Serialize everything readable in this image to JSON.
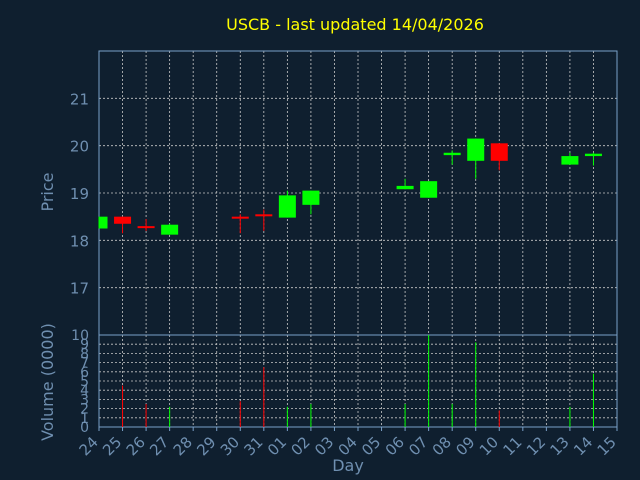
{
  "colors": {
    "background": "#0f1f2f",
    "grid": "#c8c8c8",
    "axis": "#7aa0c8",
    "text": "#6f8fb0",
    "title": "#ffff00",
    "up": "#00ff00",
    "down": "#ff0000"
  },
  "chart_data": {
    "type": "candlestick",
    "title": "USCB - last updated 14/04/2026",
    "xlabel": "Day",
    "ylabel": "Price",
    "volume_label": "Volume (0000)",
    "grid": true,
    "price_ylim": [
      16,
      22
    ],
    "price_ticks": [
      "17",
      "18",
      "19",
      "20",
      "21"
    ],
    "volume_ylim": [
      0,
      10
    ],
    "volume_ticks": [
      "0",
      "1",
      "2",
      "3",
      "4",
      "5",
      "6",
      "7",
      "8",
      "9",
      "10"
    ],
    "days": [
      "24",
      "25",
      "26",
      "27",
      "28",
      "29",
      "30",
      "31",
      "01",
      "02",
      "03",
      "04",
      "05",
      "06",
      "07",
      "08",
      "09",
      "10",
      "11",
      "12",
      "13",
      "14",
      "15"
    ],
    "candles": [
      {
        "day": "24",
        "open": 18.25,
        "close": 18.5,
        "high": 18.5,
        "low": 18.25
      },
      {
        "day": "25",
        "open": 18.5,
        "close": 18.35,
        "high": 18.5,
        "low": 18.15
      },
      {
        "day": "26",
        "open": 18.3,
        "close": 18.28,
        "high": 18.45,
        "low": 18.2
      },
      {
        "day": "27",
        "open": 18.12,
        "close": 18.33,
        "high": 18.35,
        "low": 18.12
      },
      {
        "day": "30",
        "open": 18.5,
        "close": 18.48,
        "high": 18.55,
        "low": 18.15
      },
      {
        "day": "31",
        "open": 18.55,
        "close": 18.52,
        "high": 18.65,
        "low": 18.2
      },
      {
        "day": "01",
        "open": 18.48,
        "close": 18.95,
        "high": 19.05,
        "low": 18.48
      },
      {
        "day": "02",
        "open": 18.75,
        "close": 19.05,
        "high": 19.05,
        "low": 18.55
      },
      {
        "day": "06",
        "open": 19.08,
        "close": 19.15,
        "high": 19.3,
        "low": 19.08
      },
      {
        "day": "07",
        "open": 18.9,
        "close": 19.25,
        "high": 19.25,
        "low": 18.9
      },
      {
        "day": "08",
        "open": 19.8,
        "close": 19.85,
        "high": 19.9,
        "low": 19.6
      },
      {
        "day": "09",
        "open": 19.68,
        "close": 20.15,
        "high": 20.15,
        "low": 19.3
      },
      {
        "day": "10",
        "open": 20.05,
        "close": 19.68,
        "high": 20.05,
        "low": 19.48
      },
      {
        "day": "13",
        "open": 19.6,
        "close": 19.78,
        "high": 19.85,
        "low": 19.6
      },
      {
        "day": "14",
        "open": 19.78,
        "close": 19.83,
        "high": 19.85,
        "low": 19.58
      }
    ],
    "volume": [
      {
        "day": "24",
        "value": 0,
        "dir": "up"
      },
      {
        "day": "25",
        "value": 4.5,
        "dir": "down"
      },
      {
        "day": "26",
        "value": 2.5,
        "dir": "down"
      },
      {
        "day": "27",
        "value": 2.2,
        "dir": "up"
      },
      {
        "day": "30",
        "value": 2.8,
        "dir": "down"
      },
      {
        "day": "31",
        "value": 6.5,
        "dir": "down"
      },
      {
        "day": "01",
        "value": 2.2,
        "dir": "up"
      },
      {
        "day": "02",
        "value": 2.5,
        "dir": "up"
      },
      {
        "day": "06",
        "value": 2.5,
        "dir": "up"
      },
      {
        "day": "07",
        "value": 10,
        "dir": "up"
      },
      {
        "day": "08",
        "value": 2.5,
        "dir": "up"
      },
      {
        "day": "09",
        "value": 9.2,
        "dir": "up"
      },
      {
        "day": "10",
        "value": 1.8,
        "dir": "down"
      },
      {
        "day": "13",
        "value": 2.2,
        "dir": "up"
      },
      {
        "day": "14",
        "value": 5.8,
        "dir": "up"
      }
    ]
  }
}
